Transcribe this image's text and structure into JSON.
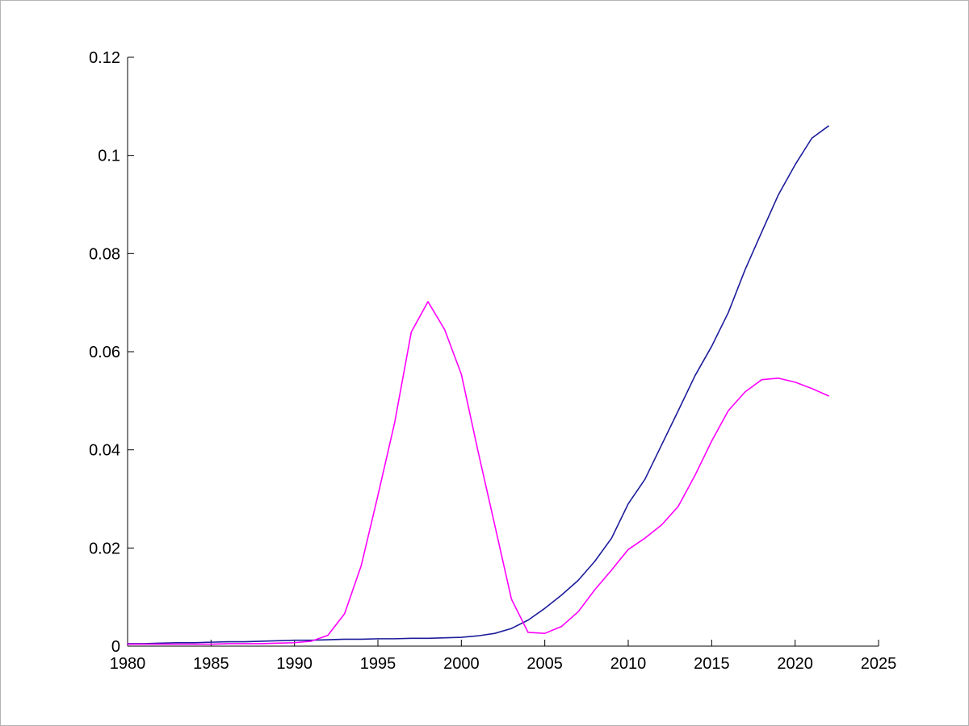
{
  "figure": {
    "background": "#ffffff",
    "border_color": "#b4b4b4"
  },
  "chart_data": {
    "type": "line",
    "title": "",
    "xlabel": "",
    "ylabel": "",
    "grid": false,
    "legend": null,
    "axis_color": "#000000",
    "xlim": [
      1980,
      2025
    ],
    "ylim": [
      0,
      0.12
    ],
    "x_ticks": [
      1980,
      1985,
      1990,
      1995,
      2000,
      2005,
      2010,
      2015,
      2020,
      2025
    ],
    "x_tick_labels": [
      "1980",
      "1985",
      "1990",
      "1995",
      "2000",
      "2005",
      "2010",
      "2015",
      "2020",
      "2025"
    ],
    "y_ticks": [
      0,
      0.02,
      0.04,
      0.06,
      0.08,
      0.1,
      0.12
    ],
    "y_tick_labels": [
      "0",
      "0.02",
      "0.04",
      "0.06",
      "0.08",
      "0.1",
      "0.12"
    ],
    "x": [
      1980,
      1981,
      1982,
      1983,
      1984,
      1985,
      1986,
      1987,
      1988,
      1989,
      1990,
      1991,
      1992,
      1993,
      1994,
      1995,
      1996,
      1997,
      1998,
      1999,
      2000,
      2001,
      2002,
      2003,
      2004,
      2005,
      2006,
      2007,
      2008,
      2009,
      2010,
      2011,
      2012,
      2013,
      2014,
      2015,
      2016,
      2017,
      2018,
      2019,
      2020,
      2021,
      2022
    ],
    "series": [
      {
        "name": "blue-line",
        "color": "#1c1c9c",
        "values": [
          0.0005,
          0.0005,
          0.0006,
          0.0007,
          0.0007,
          0.0008,
          0.0009,
          0.0009,
          0.001,
          0.0011,
          0.0012,
          0.0012,
          0.0013,
          0.0014,
          0.0014,
          0.0015,
          0.0015,
          0.0016,
          0.0016,
          0.0017,
          0.0018,
          0.0021,
          0.0026,
          0.0036,
          0.0053,
          0.0077,
          0.0104,
          0.0134,
          0.0173,
          0.022,
          0.029,
          0.034,
          0.041,
          0.048,
          0.0551,
          0.0611,
          0.068,
          0.0767,
          0.0844,
          0.092,
          0.0981,
          0.1035,
          0.106
        ]
      },
      {
        "name": "magenta-line",
        "color": "#ff00ff",
        "values": [
          0.0004,
          0.0004,
          0.0004,
          0.0004,
          0.0004,
          0.0004,
          0.0005,
          0.0005,
          0.0005,
          0.0006,
          0.0007,
          0.001,
          0.0022,
          0.0066,
          0.0164,
          0.0307,
          0.0455,
          0.064,
          0.0702,
          0.0645,
          0.0554,
          0.0397,
          0.0247,
          0.0096,
          0.0028,
          0.0026,
          0.004,
          0.007,
          0.0115,
          0.0155,
          0.0197,
          0.022,
          0.0247,
          0.0285,
          0.0348,
          0.0418,
          0.048,
          0.0518,
          0.0543,
          0.0546,
          0.0538,
          0.0525,
          0.051
        ]
      }
    ]
  }
}
